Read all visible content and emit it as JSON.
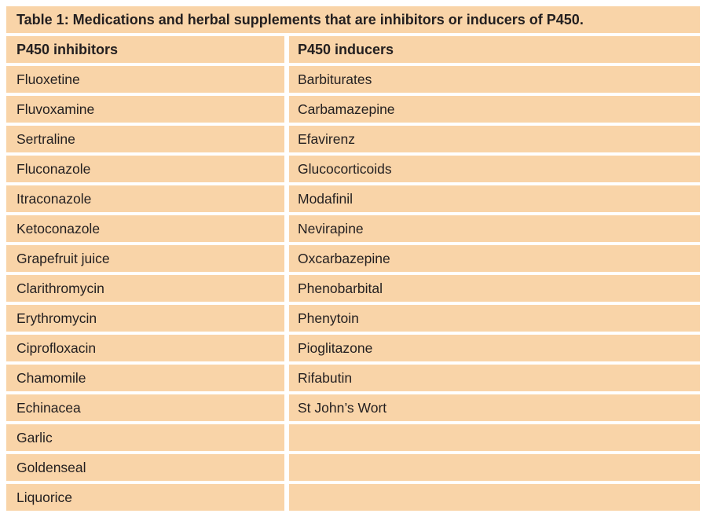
{
  "table": {
    "title": "Table 1: Medications and herbal supplements that are inhibitors or inducers of P450.",
    "columns": [
      "P450 inhibitors",
      "P450 inducers"
    ],
    "rows": [
      [
        "Fluoxetine",
        "Barbiturates"
      ],
      [
        "Fluvoxamine",
        "Carbamazepine"
      ],
      [
        "Sertraline",
        "Efavirenz"
      ],
      [
        "Fluconazole",
        "Glucocorticoids"
      ],
      [
        "Itraconazole",
        "Modafinil"
      ],
      [
        "Ketoconazole",
        "Nevirapine"
      ],
      [
        "Grapefruit juice",
        "Oxcarbazepine"
      ],
      [
        "Clarithromycin",
        "Phenobarbital"
      ],
      [
        "Erythromycin",
        "Phenytoin"
      ],
      [
        "Ciprofloxacin",
        "Pioglitazone"
      ],
      [
        "Chamomile",
        "Rifabutin"
      ],
      [
        "Echinacea",
        "St John’s Wort"
      ],
      [
        "Garlic",
        ""
      ],
      [
        "Goldenseal",
        ""
      ],
      [
        "Liquorice",
        ""
      ]
    ],
    "colors": {
      "cell_bg": "#f9d4a8",
      "text": "#231f20",
      "page_bg": "#ffffff"
    }
  }
}
